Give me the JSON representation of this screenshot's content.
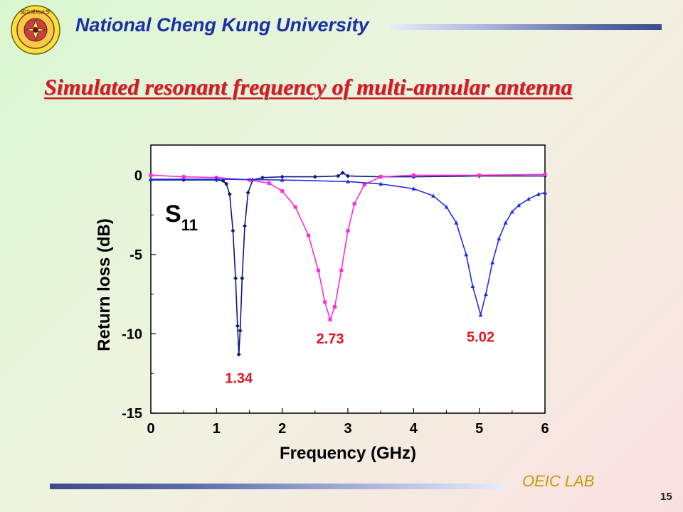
{
  "header": {
    "university": "National Cheng Kung University",
    "logo_text": "國立成功大學"
  },
  "slide_title": "Simulated resonant frequency of multi-annular antenna",
  "footer": {
    "lab": "OEIC LAB",
    "page": "15"
  },
  "colors": {
    "title": "#e0141c",
    "header": "#1d2fa6",
    "lab": "#c79a0b"
  },
  "chart_data": {
    "type": "line",
    "xlabel": "Frequency (GHz)",
    "ylabel": "Return loss (dB)",
    "xlim": [
      0,
      6
    ],
    "ylim": [
      -15,
      1.9
    ],
    "xticks": [
      "0",
      "1",
      "2",
      "3",
      "4",
      "5",
      "6"
    ],
    "yticks": [
      "0",
      "-5",
      "-10",
      "-15"
    ],
    "annotation": {
      "main": "S",
      "sub": "11"
    },
    "grid": false,
    "series": [
      {
        "color": "#0b1a7a",
        "marker": "diamond",
        "points": [
          [
            0,
            -0.3
          ],
          [
            0.5,
            -0.3
          ],
          [
            1.0,
            -0.3
          ],
          [
            1.1,
            -0.35
          ],
          [
            1.15,
            -0.55
          ],
          [
            1.2,
            -1.2
          ],
          [
            1.25,
            -3.5
          ],
          [
            1.29,
            -6.5
          ],
          [
            1.32,
            -9.5
          ],
          [
            1.34,
            -11.3
          ],
          [
            1.36,
            -9.8
          ],
          [
            1.39,
            -6.5
          ],
          [
            1.43,
            -3.2
          ],
          [
            1.48,
            -1.1
          ],
          [
            1.55,
            -0.3
          ],
          [
            1.7,
            -0.15
          ],
          [
            2.0,
            -0.1
          ],
          [
            2.5,
            -0.1
          ],
          [
            2.85,
            -0.05
          ],
          [
            2.92,
            0.15
          ],
          [
            3.0,
            -0.05
          ],
          [
            3.5,
            -0.1
          ],
          [
            4.0,
            -0.1
          ],
          [
            5.0,
            -0.05
          ],
          [
            6.0,
            -0.05
          ]
        ],
        "label": "1.34",
        "label_at": [
          1.34,
          -12.2
        ]
      },
      {
        "color": "#ff2ad8",
        "marker": "square",
        "points": [
          [
            0,
            0
          ],
          [
            0.5,
            -0.1
          ],
          [
            1.0,
            -0.15
          ],
          [
            1.5,
            -0.3
          ],
          [
            1.8,
            -0.5
          ],
          [
            2.0,
            -1.0
          ],
          [
            2.2,
            -2.0
          ],
          [
            2.4,
            -3.8
          ],
          [
            2.55,
            -6.0
          ],
          [
            2.65,
            -8.0
          ],
          [
            2.73,
            -9.1
          ],
          [
            2.8,
            -8.3
          ],
          [
            2.9,
            -6.0
          ],
          [
            3.0,
            -3.5
          ],
          [
            3.1,
            -1.8
          ],
          [
            3.25,
            -0.6
          ],
          [
            3.5,
            -0.1
          ],
          [
            4.0,
            0
          ],
          [
            5.0,
            0
          ],
          [
            6.0,
            0.05
          ]
        ],
        "label": "2.73",
        "label_at": [
          2.73,
          -9.7
        ]
      },
      {
        "color": "#1f2ee6",
        "marker": "triangle",
        "points": [
          [
            0,
            -0.25
          ],
          [
            1.0,
            -0.25
          ],
          [
            2.0,
            -0.3
          ],
          [
            3.0,
            -0.4
          ],
          [
            3.5,
            -0.55
          ],
          [
            4.0,
            -0.85
          ],
          [
            4.3,
            -1.3
          ],
          [
            4.5,
            -2.0
          ],
          [
            4.65,
            -3.0
          ],
          [
            4.8,
            -5.0
          ],
          [
            4.9,
            -7.0
          ],
          [
            5.02,
            -8.8
          ],
          [
            5.1,
            -7.5
          ],
          [
            5.2,
            -5.5
          ],
          [
            5.3,
            -4.0
          ],
          [
            5.4,
            -3.0
          ],
          [
            5.5,
            -2.3
          ],
          [
            5.6,
            -1.9
          ],
          [
            5.75,
            -1.5
          ],
          [
            5.9,
            -1.2
          ],
          [
            6.0,
            -1.1
          ]
        ],
        "label": "5.02",
        "label_at": [
          5.02,
          -9.6
        ]
      }
    ]
  }
}
